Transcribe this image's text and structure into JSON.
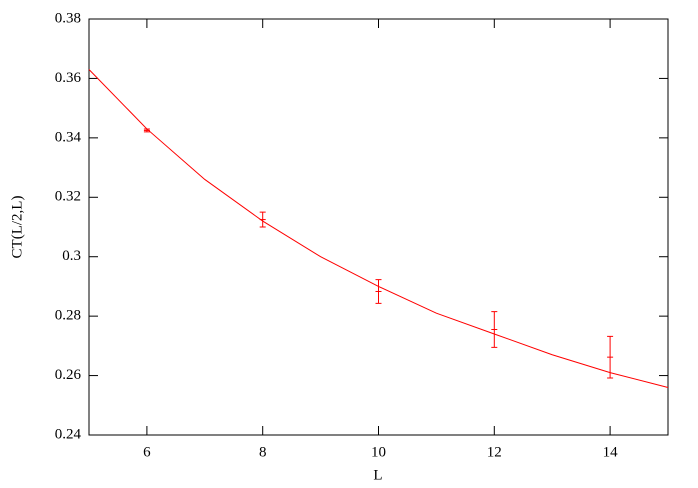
{
  "chart_data": {
    "type": "scatter",
    "xlabel": "L",
    "ylabel": "CT(L/2,L)",
    "xlim": [
      5,
      15
    ],
    "xticks": [
      6,
      8,
      10,
      12,
      14
    ],
    "ylim": [
      0.24,
      0.38
    ],
    "yticks": [
      0.24,
      0.26,
      0.28,
      0.3,
      0.32,
      0.34,
      0.36,
      0.38
    ],
    "series": [
      {
        "type": "errorbar",
        "color": "#ff0000",
        "x": [
          6,
          8,
          10,
          12,
          14
        ],
        "values": [
          0.3425,
          0.3125,
          0.2883,
          0.2755,
          0.2662
        ],
        "errors": [
          0.0005,
          0.0025,
          0.004,
          0.006,
          0.007
        ]
      },
      {
        "type": "line",
        "color": "#ff0000",
        "x": [
          5,
          6,
          7,
          8,
          9,
          10,
          11,
          12,
          13,
          14,
          15
        ],
        "values": [
          0.363,
          0.343,
          0.326,
          0.312,
          0.3,
          0.29,
          0.281,
          0.274,
          0.267,
          0.261,
          0.256
        ]
      }
    ]
  }
}
